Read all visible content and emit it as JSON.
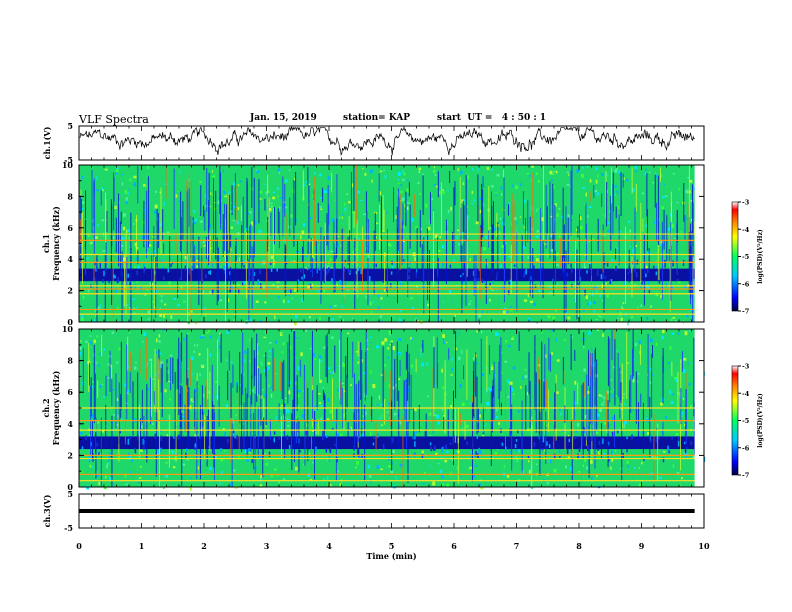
{
  "header": {
    "title": "VLF Spectra",
    "date": "Jan. 15, 2019",
    "station": "station= KAP",
    "start": "start  UT =   4 : 50 : 1"
  },
  "chart_data": [
    {
      "type": "line",
      "panel": "ch1-waveform",
      "ylabel": "ch.1(V)",
      "ylim": [
        -5,
        5
      ],
      "yticks": [
        "5",
        "-5"
      ],
      "xlim": [
        0,
        10
      ],
      "grid": false
    },
    {
      "type": "heatmap",
      "panel": "ch1-spectrogram",
      "ylabel": "ch.1\nFrequency  (kHz)",
      "ylim": [
        0,
        10
      ],
      "yticks": [
        "0",
        "2",
        "4",
        "6",
        "8",
        "10"
      ],
      "xlim": [
        0,
        10
      ],
      "colorbar": {
        "label": "log(PSD)(V²/Hz)",
        "range": [
          -7,
          -3
        ],
        "ticks": [
          "-3",
          "-4",
          "-5",
          "-6",
          "-7"
        ]
      },
      "horizontal_lines_khz": [
        0.5,
        0.8,
        1.8,
        2.1,
        2.3,
        3.8,
        4.3,
        5.2,
        5.6
      ],
      "dark_band_khz": [
        2.6,
        3.4
      ]
    },
    {
      "type": "heatmap",
      "panel": "ch2-spectrogram",
      "ylabel": "ch.2\nFrequency  (kHz)",
      "ylim": [
        0,
        10
      ],
      "yticks": [
        "0",
        "2",
        "4",
        "6",
        "8",
        "10"
      ],
      "xlim": [
        0,
        10
      ],
      "colorbar": {
        "label": "log(PSD)(V²/Hz)",
        "range": [
          -7,
          -3
        ],
        "ticks": [
          "-3",
          "-4",
          "-5",
          "-6",
          "-7"
        ]
      },
      "horizontal_lines_khz": [
        0.4,
        0.8,
        1.8,
        2.0,
        3.6,
        4.2,
        5.0
      ],
      "dark_band_khz": [
        2.4,
        3.2
      ]
    },
    {
      "type": "line",
      "panel": "ch3-waveform",
      "ylabel": "ch.3(V)",
      "ylim": [
        -5,
        5
      ],
      "yticks": [
        "5",
        "-5"
      ],
      "xlim": [
        0,
        10
      ],
      "constant_value_v": 0,
      "grid": false
    }
  ],
  "xaxis": {
    "label": "Time  (min)",
    "ticks": [
      "0",
      "1",
      "2",
      "3",
      "4",
      "5",
      "6",
      "7",
      "8",
      "9",
      "10"
    ]
  },
  "colors": {
    "spectrogram_background": "#1fd86a",
    "dark_band": "#0a10a0",
    "line": "#000000"
  }
}
